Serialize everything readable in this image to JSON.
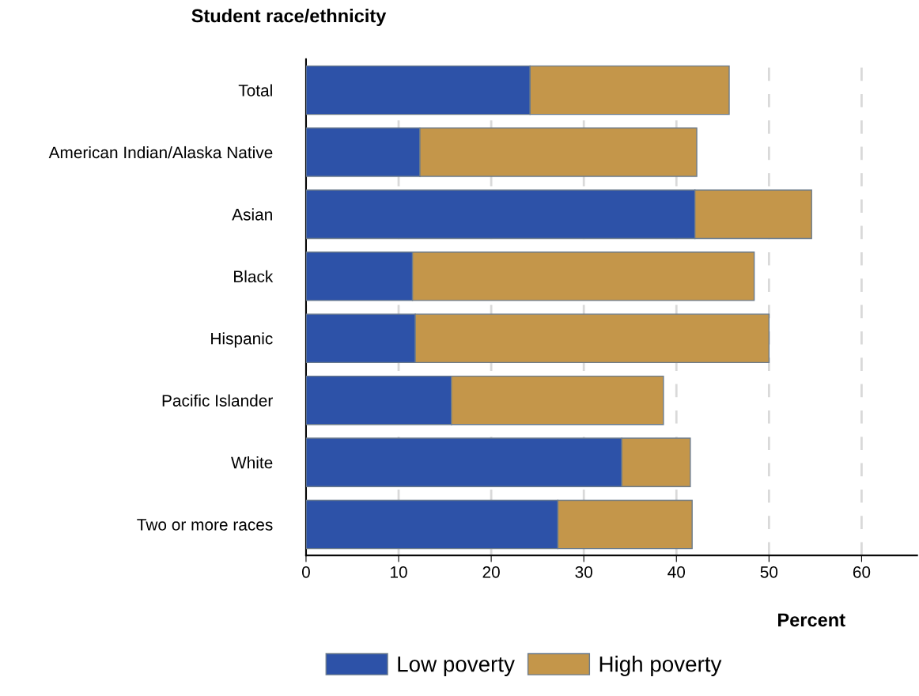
{
  "chart_data": {
    "type": "bar",
    "orientation": "horizontal",
    "stacked": true,
    "ylabel": "Student race/ethnicity",
    "xlabel": "Percent",
    "categories": [
      "Total",
      "American Indian/Alaska Native",
      "Asian",
      "Black",
      "Hispanic",
      "Pacific Islander",
      "White",
      "Two or more races"
    ],
    "series": [
      {
        "name": "Low poverty",
        "color": "#2d52a8",
        "values": [
          24.2,
          12.3,
          42.0,
          11.5,
          11.8,
          15.7,
          34.1,
          27.2
        ]
      },
      {
        "name": "High poverty",
        "color": "#c4964a",
        "values": [
          21.5,
          29.9,
          12.6,
          36.9,
          38.2,
          22.9,
          7.4,
          14.5
        ]
      }
    ],
    "xlim": [
      0,
      66
    ],
    "xticks": [
      0,
      10,
      20,
      30,
      40,
      50,
      60
    ],
    "grid": "x",
    "legend": "bottom"
  }
}
